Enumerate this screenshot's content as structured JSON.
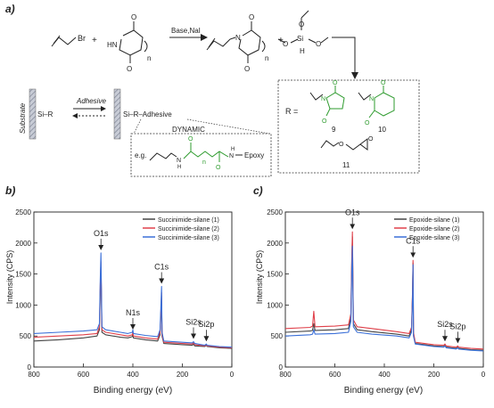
{
  "scheme": {
    "panel_label": "a)",
    "reaction_arrow_label": "Base,NaI",
    "plus_1": "+",
    "plus_2": "+",
    "ring_index_1": "n",
    "ring_index_2": "n",
    "atoms": {
      "br": "Br",
      "hn": "HN",
      "o1": "O",
      "o2": "O",
      "o3": "O",
      "o4": "O",
      "n1": "N",
      "si": "Si",
      "h": "H",
      "osi_1": "O",
      "osi_2": "O",
      "osi_3": "O"
    },
    "substrate_label": "Substrate",
    "si_r": "Si–R",
    "adhesive_arrow_label": "Adhesive",
    "si_r_adhesive": "Si–R–Adhesive",
    "dynamic_label": "DYNAMIC",
    "eg_label": "e.g.",
    "linker_n": "n",
    "linker_nh1": "N",
    "linker_h1": "H",
    "linker_nh2": "N",
    "linker_h2": "H",
    "linker_epoxy": "Epoxy",
    "linker_o1": "O",
    "linker_o2": "O",
    "r_equals": "R =",
    "compound_9": "9",
    "compound_10": "10",
    "compound_11": "11",
    "r_atoms": {
      "o9a": "O",
      "o9b": "O",
      "n9": "N",
      "o10a": "O",
      "o10b": "O",
      "n10": "N",
      "o11": "O",
      "o11e": "O"
    },
    "colors": {
      "green": "#2e9b2e",
      "black": "#222222"
    }
  },
  "chart_data": [
    {
      "panel_label": "b)",
      "type": "line",
      "xlabel": "Binding energy (eV)",
      "ylabel": "Intensity (CPS)",
      "xlim": [
        800,
        0
      ],
      "ylim": [
        0,
        2500
      ],
      "xticks": [
        "800",
        "600",
        "400",
        "200",
        "0"
      ],
      "xtick_values": [
        800,
        600,
        400,
        200,
        0
      ],
      "yticks": [
        "0",
        "500",
        "1000",
        "1500",
        "2000",
        "2500"
      ],
      "ytick_values": [
        0,
        500,
        1000,
        1500,
        2000,
        2500
      ],
      "legend_position": "top-right",
      "series": [
        {
          "name": "Succinimide-silane (1)",
          "color": "#444444",
          "x": [
            800,
            700,
            600,
            545,
            535,
            532,
            529,
            525,
            510,
            450,
            420,
            402,
            400,
            398,
            350,
            300,
            290,
            286,
            284,
            282,
            275,
            200,
            160,
            155,
            150,
            110,
            103,
            100,
            50,
            0
          ],
          "y": [
            420,
            440,
            470,
            500,
            600,
            1200,
            1600,
            560,
            520,
            480,
            470,
            490,
            530,
            470,
            440,
            420,
            520,
            900,
            1150,
            500,
            380,
            360,
            350,
            370,
            340,
            330,
            350,
            330,
            310,
            300
          ]
        },
        {
          "name": "Succinimide-silane (2)",
          "color": "#e0404a",
          "x": [
            800,
            700,
            600,
            545,
            535,
            532,
            529,
            525,
            510,
            450,
            420,
            402,
            400,
            398,
            350,
            300,
            290,
            286,
            284,
            282,
            275,
            200,
            160,
            155,
            150,
            110,
            103,
            100,
            50,
            0
          ],
          "y": [
            480,
            500,
            520,
            540,
            650,
            1300,
            1700,
            600,
            560,
            520,
            500,
            520,
            560,
            500,
            470,
            450,
            560,
            950,
            1200,
            520,
            400,
            380,
            370,
            390,
            360,
            340,
            360,
            340,
            320,
            310
          ]
        },
        {
          "name": "Succinimide-silane (3)",
          "color": "#3a6fd8",
          "x": [
            800,
            700,
            600,
            545,
            535,
            532,
            529,
            525,
            510,
            450,
            420,
            402,
            400,
            398,
            350,
            300,
            290,
            286,
            284,
            282,
            275,
            200,
            160,
            155,
            150,
            110,
            103,
            100,
            50,
            0
          ],
          "y": [
            540,
            560,
            580,
            600,
            700,
            1400,
            1840,
            650,
            600,
            560,
            540,
            560,
            600,
            540,
            510,
            490,
            600,
            1050,
            1300,
            560,
            420,
            400,
            390,
            410,
            380,
            350,
            370,
            350,
            330,
            320
          ]
        }
      ],
      "annotations": [
        {
          "label": "O1s",
          "x": 529,
          "y": 1840
        },
        {
          "label": "N1s",
          "x": 400,
          "y": 560
        },
        {
          "label": "C1s",
          "x": 284,
          "y": 1300
        },
        {
          "label": "Si2s",
          "x": 155,
          "y": 410
        },
        {
          "label": "Si2p",
          "x": 103,
          "y": 370
        }
      ]
    },
    {
      "panel_label": "c)",
      "type": "line",
      "xlabel": "Binding energy (eV)",
      "ylabel": "Intensity (CPS)",
      "xlim": [
        800,
        0
      ],
      "ylim": [
        0,
        2500
      ],
      "xticks": [
        "800",
        "600",
        "400",
        "200",
        "0"
      ],
      "xtick_values": [
        800,
        600,
        400,
        200,
        0
      ],
      "yticks": [
        "0",
        "500",
        "1000",
        "1500",
        "2000",
        "2500"
      ],
      "ytick_values": [
        0,
        500,
        1000,
        1500,
        2000,
        2500
      ],
      "legend_position": "top-right",
      "series": [
        {
          "name": "Epoxide-silane (1)",
          "color": "#444444",
          "x": [
            800,
            700,
            690,
            685,
            680,
            600,
            545,
            535,
            532,
            529,
            525,
            510,
            450,
            350,
            300,
            290,
            286,
            284,
            282,
            275,
            200,
            160,
            155,
            150,
            110,
            103,
            100,
            50,
            0
          ],
          "y": [
            560,
            580,
            590,
            700,
            590,
            600,
            620,
            800,
            1600,
            2100,
            700,
            600,
            570,
            530,
            500,
            600,
            1150,
            1680,
            520,
            380,
            340,
            330,
            350,
            320,
            300,
            320,
            300,
            280,
            270
          ]
        },
        {
          "name": "Epoxide-silane (2)",
          "color": "#e0404a",
          "x": [
            800,
            700,
            690,
            685,
            680,
            600,
            545,
            535,
            532,
            529,
            525,
            510,
            450,
            350,
            300,
            290,
            286,
            284,
            282,
            275,
            200,
            160,
            155,
            150,
            110,
            103,
            100,
            50,
            0
          ],
          "y": [
            620,
            640,
            660,
            900,
            650,
            660,
            680,
            860,
            1700,
            2180,
            760,
            650,
            620,
            570,
            540,
            640,
            1200,
            1720,
            560,
            400,
            360,
            350,
            370,
            340,
            320,
            340,
            320,
            300,
            290
          ]
        },
        {
          "name": "Epoxide-silane (3)",
          "color": "#3a6fd8",
          "x": [
            800,
            700,
            690,
            685,
            680,
            600,
            545,
            535,
            532,
            529,
            525,
            510,
            450,
            350,
            300,
            290,
            286,
            284,
            282,
            275,
            200,
            160,
            155,
            150,
            110,
            103,
            100,
            50,
            0
          ],
          "y": [
            500,
            520,
            530,
            600,
            530,
            540,
            560,
            740,
            1500,
            1950,
            650,
            560,
            530,
            500,
            470,
            560,
            1100,
            1650,
            500,
            370,
            330,
            320,
            340,
            310,
            290,
            310,
            290,
            270,
            260
          ]
        }
      ],
      "annotations": [
        {
          "label": "O1s",
          "x": 529,
          "y": 2180
        },
        {
          "label": "C1s",
          "x": 284,
          "y": 1720
        },
        {
          "label": "Si2s",
          "x": 155,
          "y": 370
        },
        {
          "label": "Si2p",
          "x": 103,
          "y": 340
        }
      ]
    }
  ]
}
